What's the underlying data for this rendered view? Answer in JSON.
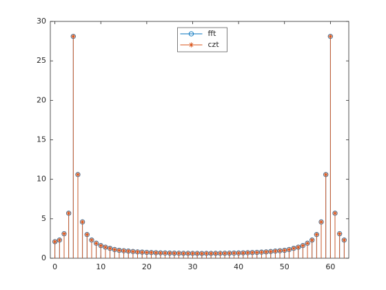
{
  "chart_data": {
    "type": "stem",
    "x": [
      0,
      1,
      2,
      3,
      4,
      5,
      6,
      7,
      8,
      9,
      10,
      11,
      12,
      13,
      14,
      15,
      16,
      17,
      18,
      19,
      20,
      21,
      22,
      23,
      24,
      25,
      26,
      27,
      28,
      29,
      30,
      31,
      32,
      33,
      34,
      35,
      36,
      37,
      38,
      39,
      40,
      41,
      42,
      43,
      44,
      45,
      46,
      47,
      48,
      49,
      50,
      51,
      52,
      53,
      54,
      55,
      56,
      57,
      58,
      59,
      60,
      61,
      62,
      63
    ],
    "series": [
      {
        "name": "fft",
        "color": "#0072BD",
        "marker": "circle",
        "values": [
          2.1,
          2.3,
          3.1,
          5.7,
          28.1,
          10.6,
          4.6,
          3.0,
          2.3,
          1.9,
          1.6,
          1.4,
          1.25,
          1.1,
          1.0,
          0.95,
          0.9,
          0.85,
          0.8,
          0.77,
          0.74,
          0.72,
          0.7,
          0.68,
          0.66,
          0.65,
          0.64,
          0.63,
          0.62,
          0.62,
          0.61,
          0.61,
          0.6,
          0.61,
          0.61,
          0.62,
          0.62,
          0.63,
          0.64,
          0.65,
          0.66,
          0.68,
          0.7,
          0.72,
          0.74,
          0.77,
          0.8,
          0.85,
          0.9,
          0.95,
          1.0,
          1.1,
          1.25,
          1.4,
          1.6,
          1.9,
          2.3,
          3.0,
          4.6,
          10.6,
          28.1,
          5.7,
          3.1,
          2.3
        ]
      },
      {
        "name": "czt",
        "color": "#D95319",
        "marker": "asterisk",
        "values": [
          2.1,
          2.3,
          3.1,
          5.7,
          28.1,
          10.6,
          4.6,
          3.0,
          2.3,
          1.9,
          1.6,
          1.4,
          1.25,
          1.1,
          1.0,
          0.95,
          0.9,
          0.85,
          0.8,
          0.77,
          0.74,
          0.72,
          0.7,
          0.68,
          0.66,
          0.65,
          0.64,
          0.63,
          0.62,
          0.62,
          0.61,
          0.61,
          0.6,
          0.61,
          0.61,
          0.62,
          0.62,
          0.63,
          0.64,
          0.65,
          0.66,
          0.68,
          0.7,
          0.72,
          0.74,
          0.77,
          0.8,
          0.85,
          0.9,
          0.95,
          1.0,
          1.1,
          1.25,
          1.4,
          1.6,
          1.9,
          2.3,
          3.0,
          4.6,
          10.6,
          28.1,
          5.7,
          3.1,
          2.3
        ]
      }
    ],
    "xlim": [
      -1,
      64
    ],
    "ylim": [
      0,
      30
    ],
    "xticks": [
      0,
      10,
      20,
      30,
      40,
      50,
      60
    ],
    "yticks": [
      0,
      5,
      10,
      15,
      20,
      25,
      30
    ],
    "grid": false,
    "legend": "north"
  }
}
